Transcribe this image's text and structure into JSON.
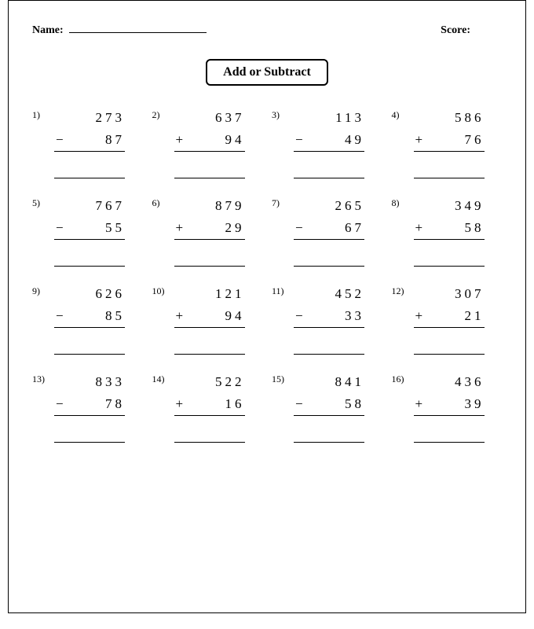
{
  "header": {
    "name_label": "Name:",
    "score_label": "Score:"
  },
  "title": "Add or Subtract",
  "colors": {
    "page_bg": "#ffffff",
    "text": "#000000",
    "border": "#000000"
  },
  "typography": {
    "font_family": "Georgia, Times New Roman, serif",
    "title_fontsize": 16,
    "header_fontsize": 14,
    "problem_fontsize": 17,
    "number_letter_spacing": 4
  },
  "layout": {
    "columns": 4,
    "rows": 4,
    "sheet_width": 660,
    "sheet_height": 780
  },
  "problems": [
    {
      "n": "1)",
      "a": "273",
      "op": "−",
      "b": "87"
    },
    {
      "n": "2)",
      "a": "637",
      "op": "+",
      "b": "94"
    },
    {
      "n": "3)",
      "a": "113",
      "op": "−",
      "b": "49"
    },
    {
      "n": "4)",
      "a": "586",
      "op": "+",
      "b": "76"
    },
    {
      "n": "5)",
      "a": "767",
      "op": "−",
      "b": "55"
    },
    {
      "n": "6)",
      "a": "879",
      "op": "+",
      "b": "29"
    },
    {
      "n": "7)",
      "a": "265",
      "op": "−",
      "b": "67"
    },
    {
      "n": "8)",
      "a": "349",
      "op": "+",
      "b": "58"
    },
    {
      "n": "9)",
      "a": "626",
      "op": "−",
      "b": "85"
    },
    {
      "n": "10)",
      "a": "121",
      "op": "+",
      "b": "94"
    },
    {
      "n": "11)",
      "a": "452",
      "op": "−",
      "b": "33"
    },
    {
      "n": "12)",
      "a": "307",
      "op": "+",
      "b": "21"
    },
    {
      "n": "13)",
      "a": "833",
      "op": "−",
      "b": "78"
    },
    {
      "n": "14)",
      "a": "522",
      "op": "+",
      "b": "16"
    },
    {
      "n": "15)",
      "a": "841",
      "op": "−",
      "b": "58"
    },
    {
      "n": "16)",
      "a": "436",
      "op": "+",
      "b": "39"
    }
  ]
}
